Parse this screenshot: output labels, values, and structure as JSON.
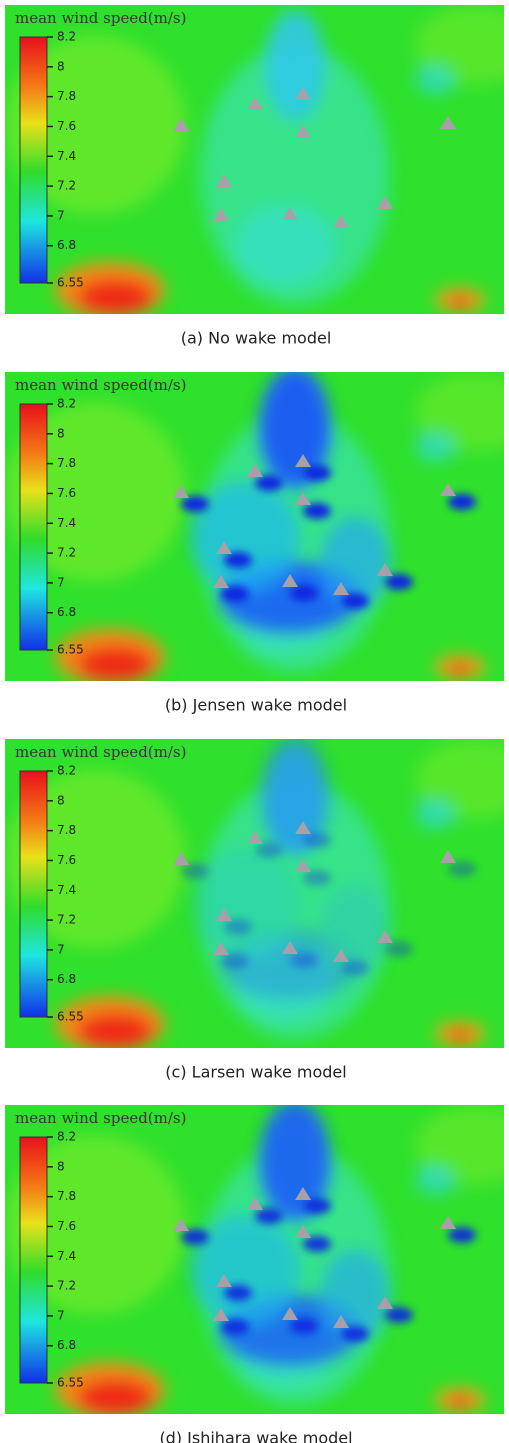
{
  "panels": [
    {
      "colorbar_label": "mean wind speed(m/s)",
      "colorbar_lim": [
        6.55,
        8.2
      ],
      "colorbar_ticks": [
        8.2,
        8,
        7.8,
        7.6,
        7.4,
        7.2,
        7,
        6.8,
        6.55
      ],
      "caption": "(a) No wake model"
    },
    {
      "colorbar_label": "mean wind speed(m/s)",
      "colorbar_lim": [
        6.55,
        8.2
      ],
      "colorbar_ticks": [
        8.2,
        8,
        7.8,
        7.6,
        7.4,
        7.2,
        7,
        6.8,
        6.55
      ],
      "caption": "(b) Jensen wake model"
    },
    {
      "colorbar_label": "mean wind speed(m/s)",
      "colorbar_lim": [
        6.55,
        8.2
      ],
      "colorbar_ticks": [
        8.2,
        8,
        7.8,
        7.6,
        7.4,
        7.2,
        7,
        6.8,
        6.55
      ],
      "caption": "(c) Larsen wake model"
    },
    {
      "colorbar_label": "mean wind speed(m/s)",
      "colorbar_lim": [
        6.55,
        8.2
      ],
      "colorbar_ticks": [
        8.2,
        8,
        7.8,
        7.6,
        7.4,
        7.2,
        7,
        6.8,
        6.55
      ],
      "caption": "(d) Ishihara wake model"
    }
  ]
}
